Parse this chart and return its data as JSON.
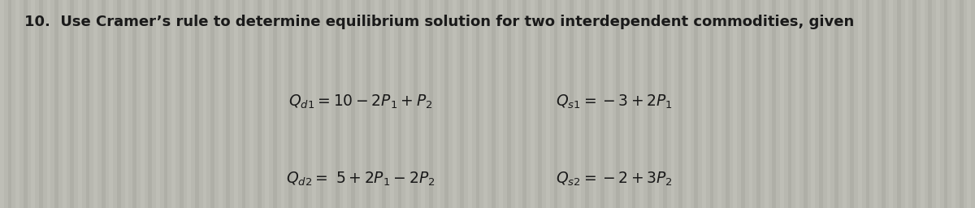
{
  "background_color": "#b8b8b0",
  "stripe_color_light": "#c4c4bc",
  "stripe_color_dark": "#a8a8a0",
  "title_line": "10.  Use Cramer’s rule to determine equilibrium solution for two interdependent commodities, given",
  "eq1_left": "$Q_{d1} = 10 - 2P_1 + P_2$",
  "eq2_left": "$Q_{d2} =\\ 5 + 2P_1 - 2P_2$",
  "eq1_right": "$Q_{s1} = -3 + 2P_1$",
  "eq2_right": "$Q_{s2} = -2 + 3P_2$",
  "title_fontsize": 13.0,
  "eq_fontsize": 13.5,
  "text_color": "#1a1a1a",
  "figsize": [
    12.0,
    2.56
  ],
  "dpi": 100
}
